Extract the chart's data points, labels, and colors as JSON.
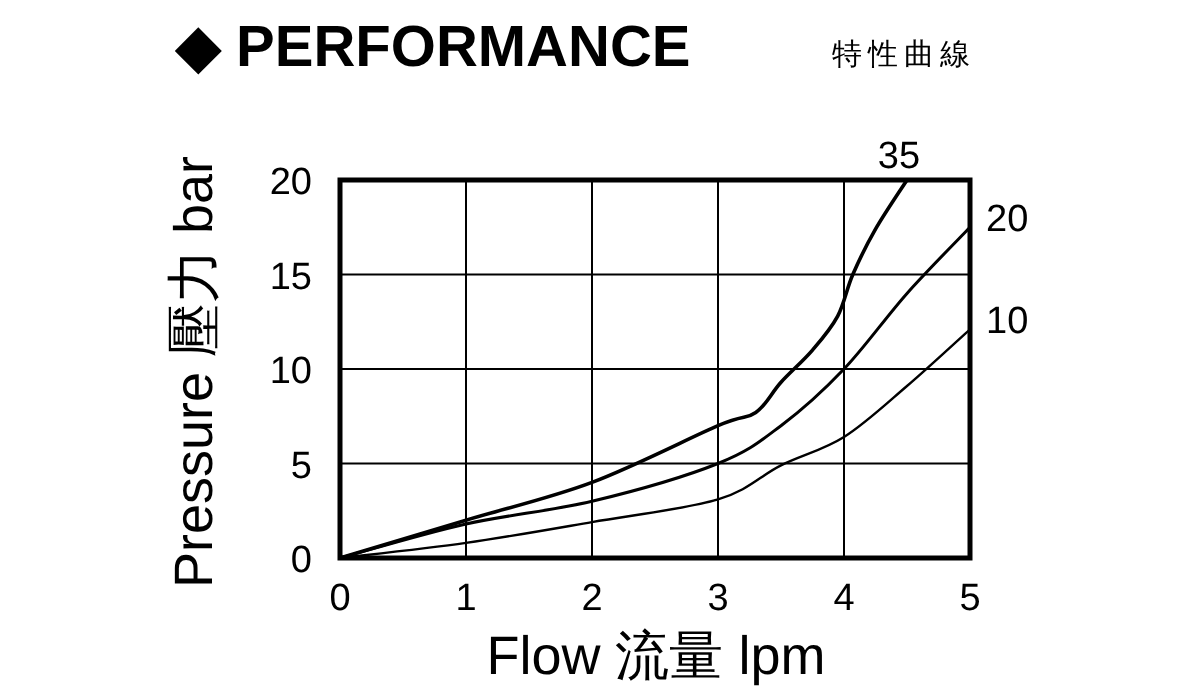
{
  "chart_data": {
    "type": "line",
    "title": "◆ PERFORMANCE",
    "subtitle": "特性曲線",
    "xlabel": "Flow 流量 lpm",
    "ylabel": "Pressure 壓力 bar",
    "xlim": [
      0,
      5
    ],
    "ylim": [
      0,
      20
    ],
    "xticks": [
      0,
      1,
      2,
      3,
      4,
      5
    ],
    "yticks": [
      0,
      5,
      10,
      15,
      20
    ],
    "grid": true,
    "series": [
      {
        "name": "35",
        "color": "#000000",
        "x": [
          0,
          1,
          2,
          3,
          3.3,
          3.5,
          3.75,
          3.95,
          4.07,
          4.25,
          4.5
        ],
        "values": [
          0,
          2.0,
          4.0,
          7.0,
          7.7,
          9.3,
          11.0,
          12.8,
          15.0,
          17.4,
          20
        ]
      },
      {
        "name": "20",
        "color": "#000000",
        "x": [
          0,
          1,
          2,
          3,
          3.5,
          4,
          4.5,
          5
        ],
        "values": [
          0,
          1.8,
          3.0,
          5.0,
          7.0,
          10.0,
          14.0,
          17.5
        ]
      },
      {
        "name": "10",
        "color": "#000000",
        "x": [
          0,
          1,
          2,
          3,
          3.5,
          4,
          4.5,
          5
        ],
        "values": [
          0,
          0.8,
          1.9,
          3.1,
          4.9,
          6.4,
          9.1,
          12.1
        ]
      }
    ]
  }
}
